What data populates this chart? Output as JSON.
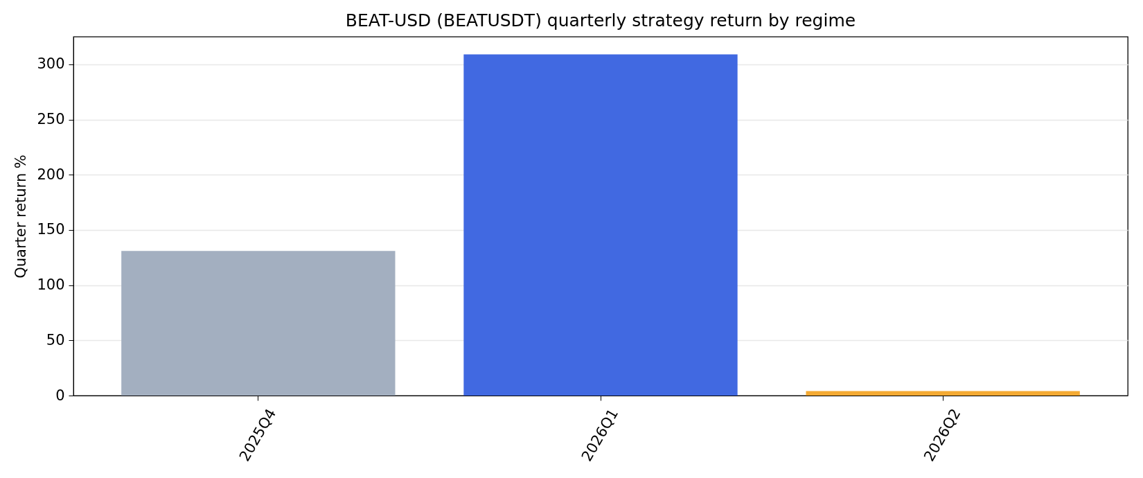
{
  "chart_data": {
    "type": "bar",
    "title": "BEAT-USD (BEATUSDT) quarterly strategy return by regime",
    "ylabel": "Quarter return %",
    "categories": [
      "2025Q4",
      "2026Q1",
      "2026Q2"
    ],
    "values": [
      131,
      309,
      4
    ],
    "colors": [
      "#a3afc0",
      "#4169e1",
      "#f4aa33"
    ],
    "ylim": [
      0,
      325
    ],
    "yticks": [
      0,
      50,
      100,
      150,
      200,
      250,
      300
    ],
    "grid": "y"
  }
}
